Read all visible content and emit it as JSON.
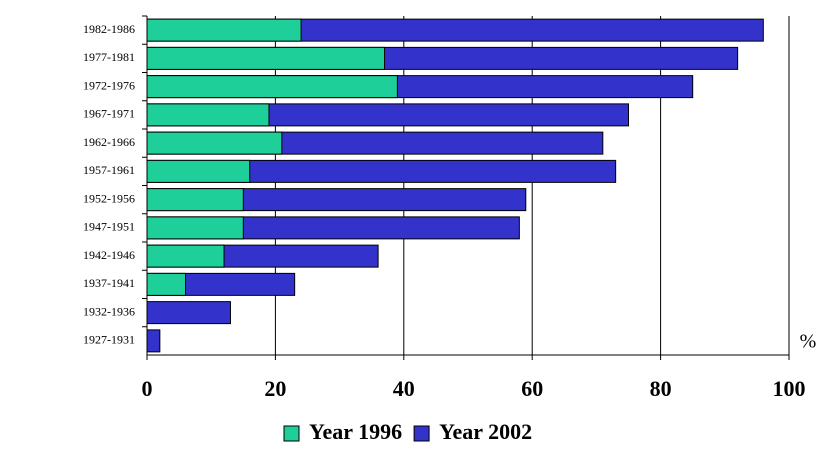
{
  "chart_data": {
    "type": "overlapped-bar-horizontal",
    "categories": [
      "1982-1986",
      "1977-1981",
      "1972-1976",
      "1967-1971",
      "1962-1966",
      "1957-1961",
      "1952-1956",
      "1947-1951",
      "1942-1946",
      "1937-1941",
      "1932-1936",
      "1927-1931"
    ],
    "series": [
      {
        "name": "Year 2002",
        "color": "#3333cc",
        "values": [
          96,
          92,
          85,
          75,
          71,
          73,
          59,
          58,
          36,
          23,
          13,
          2
        ]
      },
      {
        "name": "Year 1996",
        "color": "#1ecf9a",
        "values": [
          24,
          37,
          39,
          19,
          21,
          16,
          15,
          15,
          12,
          6,
          null,
          null
        ]
      }
    ],
    "legend_order": [
      1,
      0
    ],
    "x_label": "%",
    "xlim": [
      0,
      100
    ],
    "xticks": [
      0,
      20,
      40,
      60,
      80,
      100
    ],
    "grid": true
  }
}
